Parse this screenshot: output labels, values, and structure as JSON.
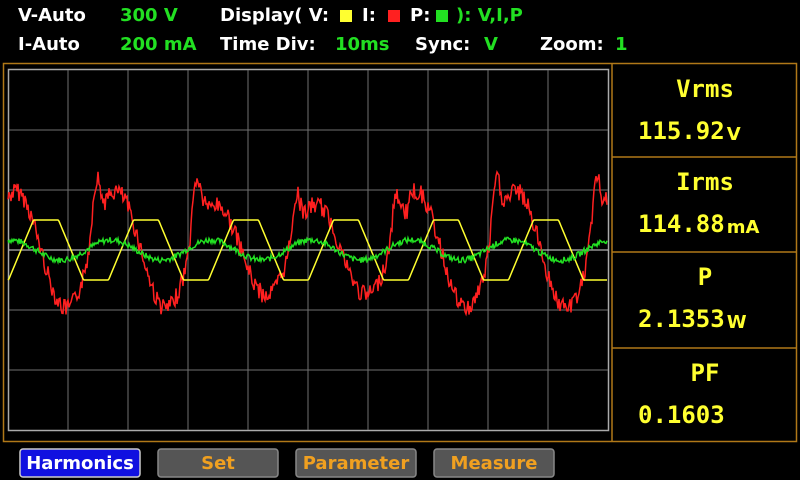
{
  "status": {
    "voltage_range_label": "V-Auto",
    "voltage_range": "300 V",
    "display_label": "Display( V:",
    "i_label": "I:",
    "p_label": "P:",
    "display_value": "): V,I,P",
    "current_range_label": "I-Auto",
    "current_range": "200 mA",
    "time_div_label": "Time Div:",
    "time_div": "10ms",
    "sync_label": "Sync:",
    "sync": "V",
    "zoom_label": "Zoom:",
    "zoom": "1"
  },
  "measurements": [
    {
      "label": "Vrms",
      "value": "115.92",
      "unit": "V"
    },
    {
      "label": "Irms",
      "value": "114.88",
      "unit": "mA"
    },
    {
      "label": "P",
      "value": "2.1353",
      "unit": "W"
    },
    {
      "label": "PF",
      "value": "0.1603"
    }
  ],
  "buttons": [
    "Harmonics",
    "Set",
    "Parameter",
    "Measure"
  ]
}
